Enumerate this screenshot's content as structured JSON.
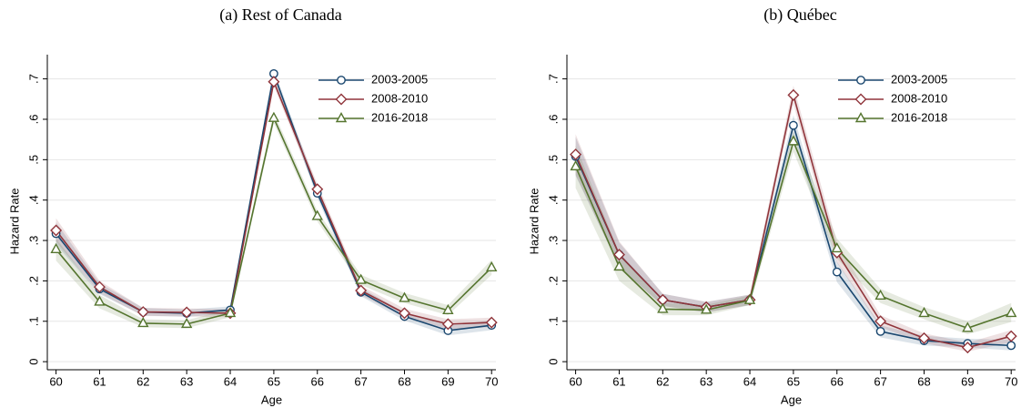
{
  "chart_data": [
    {
      "type": "line",
      "title": "(a) Rest of Canada",
      "xlabel": "Age",
      "ylabel": "Hazard Rate",
      "x": [
        60,
        61,
        62,
        63,
        64,
        65,
        66,
        67,
        68,
        69,
        70
      ],
      "xlim": [
        59.8,
        70.1
      ],
      "xticks": [
        60,
        61,
        62,
        63,
        64,
        65,
        66,
        67,
        68,
        69,
        70
      ],
      "ylim": [
        -0.02,
        0.76
      ],
      "yticks": [
        0,
        {
          "value": 0.1,
          "label": ".1"
        },
        {
          "value": 0.2,
          "label": ".2"
        },
        {
          "value": 0.3,
          "label": ".3"
        },
        {
          "value": 0.4,
          "label": ".4"
        },
        {
          "value": 0.5,
          "label": ".5"
        },
        {
          "value": 0.6,
          "label": ".6"
        },
        {
          "value": 0.7,
          "label": ".7"
        }
      ],
      "grid": true,
      "legend": "top-right",
      "series": [
        {
          "name": "2003-2005",
          "color": "#1a476f",
          "marker": "circle",
          "values": [
            0.317,
            0.18,
            0.123,
            0.12,
            0.128,
            0.713,
            0.417,
            0.172,
            0.112,
            0.077,
            0.09
          ],
          "lower": [
            0.29,
            0.167,
            0.114,
            0.111,
            0.119,
            0.702,
            0.405,
            0.162,
            0.102,
            0.065,
            0.078
          ],
          "upper": [
            0.345,
            0.194,
            0.133,
            0.129,
            0.137,
            0.724,
            0.43,
            0.183,
            0.122,
            0.09,
            0.102
          ]
        },
        {
          "name": "2008-2010",
          "color": "#90353b",
          "marker": "diamond",
          "values": [
            0.325,
            0.185,
            0.123,
            0.122,
            0.12,
            0.693,
            0.427,
            0.176,
            0.12,
            0.093,
            0.097
          ],
          "lower": [
            0.297,
            0.17,
            0.113,
            0.112,
            0.11,
            0.682,
            0.414,
            0.165,
            0.11,
            0.081,
            0.085
          ],
          "upper": [
            0.355,
            0.2,
            0.133,
            0.132,
            0.13,
            0.705,
            0.44,
            0.188,
            0.131,
            0.105,
            0.109
          ]
        },
        {
          "name": "2016-2018",
          "color": "#55752f",
          "marker": "triangle",
          "values": [
            0.278,
            0.148,
            0.095,
            0.093,
            0.12,
            0.603,
            0.36,
            0.202,
            0.157,
            0.127,
            0.233
          ],
          "lower": [
            0.25,
            0.132,
            0.085,
            0.083,
            0.11,
            0.59,
            0.347,
            0.19,
            0.145,
            0.115,
            0.215
          ],
          "upper": [
            0.305,
            0.165,
            0.105,
            0.103,
            0.13,
            0.617,
            0.373,
            0.215,
            0.17,
            0.14,
            0.252
          ]
        }
      ]
    },
    {
      "type": "line",
      "title": "(b) Québec",
      "xlabel": "Age",
      "ylabel": "Hazard Rate",
      "x": [
        60,
        61,
        62,
        63,
        64,
        65,
        66,
        67,
        68,
        69,
        70
      ],
      "xlim": [
        59.8,
        70.1
      ],
      "xticks": [
        60,
        61,
        62,
        63,
        64,
        65,
        66,
        67,
        68,
        69,
        70
      ],
      "ylim": [
        -0.02,
        0.76
      ],
      "yticks": [
        0,
        {
          "value": 0.1,
          "label": ".1"
        },
        {
          "value": 0.2,
          "label": ".2"
        },
        {
          "value": 0.3,
          "label": ".3"
        },
        {
          "value": 0.4,
          "label": ".4"
        },
        {
          "value": 0.5,
          "label": ".5"
        },
        {
          "value": 0.6,
          "label": ".6"
        },
        {
          "value": 0.7,
          "label": ".7"
        }
      ],
      "grid": true,
      "legend": "top-right",
      "series": [
        {
          "name": "2003-2005",
          "color": "#1a476f",
          "marker": "circle",
          "values": [
            0.508,
            0.265,
            0.153,
            0.135,
            0.153,
            0.585,
            0.222,
            0.075,
            0.052,
            0.045,
            0.04
          ],
          "lower": [
            0.46,
            0.235,
            0.138,
            0.122,
            0.14,
            0.56,
            0.197,
            0.06,
            0.04,
            0.035,
            0.028
          ],
          "upper": [
            0.556,
            0.295,
            0.168,
            0.148,
            0.166,
            0.61,
            0.247,
            0.09,
            0.064,
            0.057,
            0.054
          ]
        },
        {
          "name": "2008-2010",
          "color": "#90353b",
          "marker": "diamond",
          "values": [
            0.513,
            0.265,
            0.153,
            0.135,
            0.153,
            0.66,
            0.27,
            0.1,
            0.058,
            0.035,
            0.063
          ],
          "lower": [
            0.463,
            0.235,
            0.138,
            0.122,
            0.14,
            0.638,
            0.245,
            0.085,
            0.046,
            0.025,
            0.048
          ],
          "upper": [
            0.563,
            0.298,
            0.168,
            0.148,
            0.166,
            0.683,
            0.295,
            0.115,
            0.07,
            0.047,
            0.078
          ]
        },
        {
          "name": "2016-2018",
          "color": "#55752f",
          "marker": "triangle",
          "values": [
            0.483,
            0.235,
            0.13,
            0.128,
            0.152,
            0.545,
            0.28,
            0.163,
            0.12,
            0.083,
            0.12
          ],
          "lower": [
            0.43,
            0.2,
            0.115,
            0.115,
            0.14,
            0.52,
            0.255,
            0.145,
            0.105,
            0.068,
            0.098
          ],
          "upper": [
            0.535,
            0.27,
            0.145,
            0.141,
            0.164,
            0.57,
            0.305,
            0.18,
            0.135,
            0.1,
            0.145
          ]
        }
      ]
    }
  ]
}
